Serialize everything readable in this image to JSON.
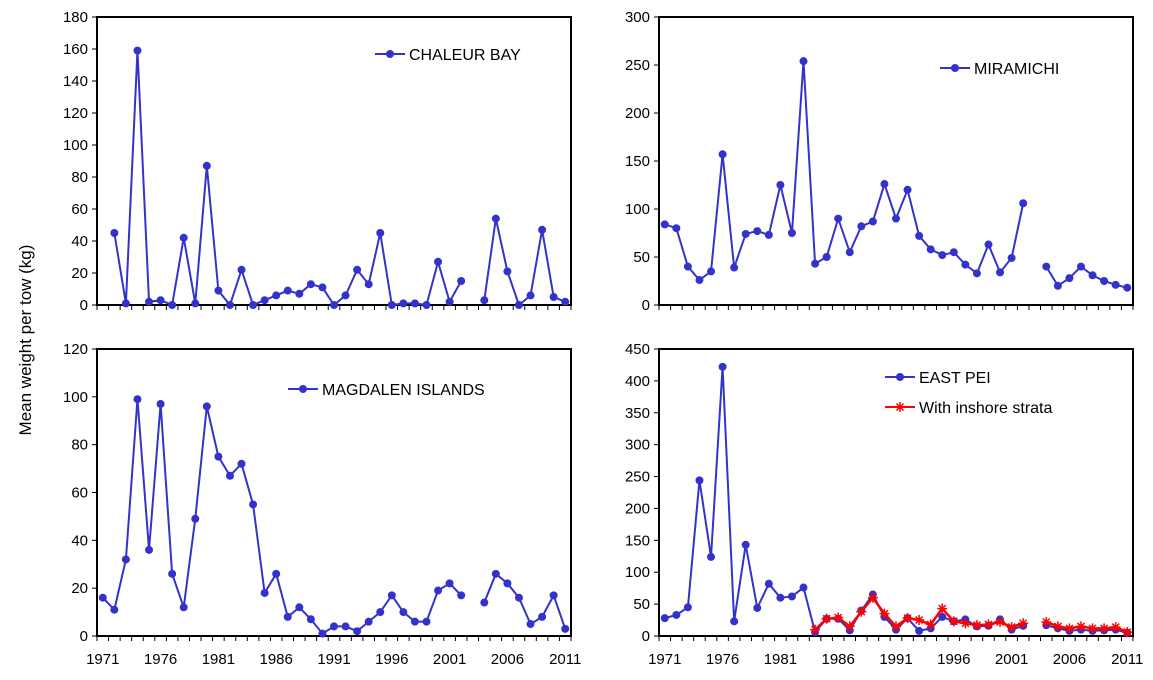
{
  "figure": {
    "ylabel": "Mean weight per tow (kg)"
  },
  "chart_data": [
    {
      "type": "line",
      "legend": [
        "CHALEUR BAY"
      ],
      "ylim": [
        0,
        180
      ],
      "yticks": [
        "0",
        "20",
        "40",
        "60",
        "80",
        "100",
        "120",
        "140",
        "160",
        "180"
      ],
      "xlim": [
        1971,
        2011
      ],
      "xticks": [],
      "series": [
        {
          "name": "CHALEUR BAY",
          "color": "#3333cc",
          "marker": "circle",
          "points": [
            [
              1972,
              45
            ],
            [
              1973,
              1
            ],
            [
              1974,
              159
            ],
            [
              1975,
              2
            ],
            [
              1976,
              3
            ],
            [
              1977,
              0
            ],
            [
              1978,
              42
            ],
            [
              1979,
              1
            ],
            [
              1980,
              87
            ],
            [
              1981,
              9
            ],
            [
              1982,
              0
            ],
            [
              1983,
              22
            ],
            [
              1984,
              0
            ],
            [
              1985,
              3
            ],
            [
              1986,
              6
            ],
            [
              1987,
              9
            ],
            [
              1988,
              7
            ],
            [
              1989,
              13
            ],
            [
              1990,
              11
            ],
            [
              1991,
              0
            ],
            [
              1992,
              6
            ],
            [
              1993,
              22
            ],
            [
              1994,
              13
            ],
            [
              1995,
              45
            ],
            [
              1996,
              0
            ],
            [
              1997,
              1
            ],
            [
              1998,
              1
            ],
            [
              1999,
              0
            ],
            [
              2000,
              27
            ],
            [
              2001,
              2
            ],
            [
              2002,
              15
            ],
            null,
            [
              2004,
              3
            ],
            [
              2005,
              54
            ],
            [
              2006,
              21
            ],
            [
              2007,
              0
            ],
            [
              2008,
              6
            ],
            [
              2009,
              47
            ],
            [
              2010,
              5
            ],
            [
              2011,
              2
            ]
          ]
        }
      ]
    },
    {
      "type": "line",
      "legend": [
        "MIRAMICHI"
      ],
      "ylim": [
        0,
        300
      ],
      "yticks": [
        "0",
        "50",
        "100",
        "150",
        "200",
        "250",
        "300"
      ],
      "xlim": [
        1971,
        2011
      ],
      "xticks": [],
      "series": [
        {
          "name": "MIRAMICHI",
          "color": "#3333cc",
          "marker": "circle",
          "points": [
            [
              1971,
              84
            ],
            [
              1972,
              80
            ],
            [
              1973,
              40
            ],
            [
              1974,
              26
            ],
            [
              1975,
              35
            ],
            [
              1976,
              157
            ],
            [
              1977,
              39
            ],
            [
              1978,
              74
            ],
            [
              1979,
              77
            ],
            [
              1980,
              73
            ],
            [
              1981,
              125
            ],
            [
              1982,
              75
            ],
            [
              1983,
              254
            ],
            [
              1984,
              43
            ],
            [
              1985,
              50
            ],
            [
              1986,
              90
            ],
            [
              1987,
              55
            ],
            [
              1988,
              82
            ],
            [
              1989,
              87
            ],
            [
              1990,
              126
            ],
            [
              1991,
              90
            ],
            [
              1992,
              120
            ],
            [
              1993,
              72
            ],
            [
              1994,
              58
            ],
            [
              1995,
              52
            ],
            [
              1996,
              55
            ],
            [
              1997,
              42
            ],
            [
              1998,
              33
            ],
            [
              1999,
              63
            ],
            [
              2000,
              34
            ],
            [
              2001,
              49
            ],
            [
              2002,
              106
            ],
            null,
            [
              2004,
              40
            ],
            [
              2005,
              20
            ],
            [
              2006,
              28
            ],
            [
              2007,
              40
            ],
            [
              2008,
              31
            ],
            [
              2009,
              25
            ],
            [
              2010,
              21
            ],
            [
              2011,
              18
            ]
          ]
        }
      ]
    },
    {
      "type": "line",
      "legend": [
        "MAGDALEN ISLANDS"
      ],
      "ylim": [
        0,
        120
      ],
      "yticks": [
        "0",
        "20",
        "40",
        "60",
        "80",
        "100",
        "120"
      ],
      "xlim": [
        1971,
        2011
      ],
      "xticks": [
        "1971",
        "1976",
        "1981",
        "1986",
        "1991",
        "1996",
        "2001",
        "2006",
        "2011"
      ],
      "series": [
        {
          "name": "MAGDALEN ISLANDS",
          "color": "#3333cc",
          "marker": "circle",
          "points": [
            [
              1971,
              16
            ],
            [
              1972,
              11
            ],
            [
              1973,
              32
            ],
            [
              1974,
              99
            ],
            [
              1975,
              36
            ],
            [
              1976,
              97
            ],
            [
              1977,
              26
            ],
            [
              1978,
              12
            ],
            [
              1979,
              49
            ],
            [
              1980,
              96
            ],
            [
              1981,
              75
            ],
            [
              1982,
              67
            ],
            [
              1983,
              72
            ],
            [
              1984,
              55
            ],
            [
              1985,
              18
            ],
            [
              1986,
              26
            ],
            [
              1987,
              8
            ],
            [
              1988,
              12
            ],
            [
              1989,
              7
            ],
            [
              1990,
              1
            ],
            [
              1991,
              4
            ],
            [
              1992,
              4
            ],
            [
              1993,
              2
            ],
            [
              1994,
              6
            ],
            [
              1995,
              10
            ],
            [
              1996,
              17
            ],
            [
              1997,
              10
            ],
            [
              1998,
              6
            ],
            [
              1999,
              6
            ],
            [
              2000,
              19
            ],
            [
              2001,
              22
            ],
            [
              2002,
              17
            ],
            null,
            [
              2004,
              14
            ],
            [
              2005,
              26
            ],
            [
              2006,
              22
            ],
            [
              2007,
              16
            ],
            [
              2008,
              5
            ],
            [
              2009,
              8
            ],
            [
              2010,
              17
            ],
            [
              2011,
              3
            ]
          ]
        }
      ]
    },
    {
      "type": "line",
      "legend": [
        "EAST PEI",
        "With inshore strata"
      ],
      "ylim": [
        0,
        450
      ],
      "yticks": [
        "0",
        "50",
        "100",
        "150",
        "200",
        "250",
        "300",
        "350",
        "400",
        "450"
      ],
      "xlim": [
        1971,
        2011
      ],
      "xticks": [
        "1971",
        "1976",
        "1981",
        "1986",
        "1991",
        "1996",
        "2001",
        "2006",
        "2011"
      ],
      "series": [
        {
          "name": "EAST PEI",
          "color": "#3333cc",
          "marker": "circle",
          "points": [
            [
              1971,
              28
            ],
            [
              1972,
              33
            ],
            [
              1973,
              45
            ],
            [
              1974,
              244
            ],
            [
              1975,
              124
            ],
            [
              1976,
              422
            ],
            [
              1977,
              23
            ],
            [
              1978,
              143
            ],
            [
              1979,
              44
            ],
            [
              1980,
              82
            ],
            [
              1981,
              60
            ],
            [
              1982,
              62
            ],
            [
              1983,
              76
            ],
            [
              1984,
              6
            ],
            [
              1985,
              27
            ],
            [
              1986,
              27
            ],
            [
              1987,
              9
            ],
            [
              1988,
              40
            ],
            [
              1989,
              65
            ],
            [
              1990,
              30
            ],
            [
              1991,
              10
            ],
            [
              1992,
              28
            ],
            [
              1993,
              8
            ],
            [
              1994,
              12
            ],
            [
              1995,
              30
            ],
            [
              1996,
              23
            ],
            [
              1997,
              26
            ],
            [
              1998,
              15
            ],
            [
              1999,
              16
            ],
            [
              2000,
              26
            ],
            [
              2001,
              10
            ],
            [
              2002,
              16
            ],
            null,
            [
              2004,
              17
            ],
            [
              2005,
              12
            ],
            [
              2006,
              8
            ],
            [
              2007,
              10
            ],
            [
              2008,
              8
            ],
            [
              2009,
              9
            ],
            [
              2010,
              10
            ],
            [
              2011,
              5
            ]
          ]
        },
        {
          "name": "With inshore strata",
          "color": "#ff0000",
          "marker": "star",
          "points": [
            [
              1984,
              10
            ],
            [
              1985,
              27
            ],
            [
              1986,
              29
            ],
            [
              1987,
              15
            ],
            [
              1988,
              38
            ],
            [
              1989,
              60
            ],
            [
              1990,
              35
            ],
            [
              1991,
              15
            ],
            [
              1992,
              28
            ],
            [
              1993,
              25
            ],
            [
              1994,
              18
            ],
            [
              1995,
              43
            ],
            [
              1996,
              23
            ],
            [
              1997,
              20
            ],
            [
              1998,
              17
            ],
            [
              1999,
              18
            ],
            [
              2000,
              22
            ],
            [
              2001,
              14
            ],
            [
              2002,
              20
            ],
            null,
            [
              2004,
              22
            ],
            [
              2005,
              15
            ],
            [
              2006,
              12
            ],
            [
              2007,
              15
            ],
            [
              2008,
              12
            ],
            [
              2009,
              12
            ],
            [
              2010,
              14
            ],
            [
              2011,
              6
            ]
          ]
        }
      ]
    }
  ]
}
